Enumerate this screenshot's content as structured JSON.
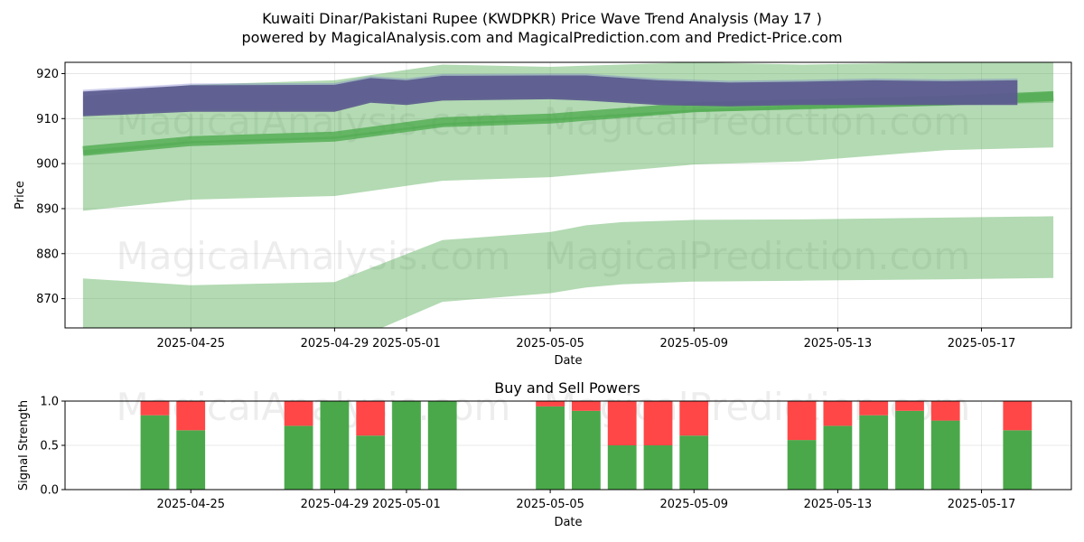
{
  "title_line1": "Kuwaiti Dinar/Pakistani Rupee (KWDPKR) Price Wave Trend Analysis (May 17 )",
  "title_line2": "powered by MagicalAnalysis.com and MagicalPrediction.com and Predict-Price.com",
  "watermarks": [
    "MagicalAnalysis.com",
    "MagicalPrediction.com"
  ],
  "chart_data": [
    {
      "type": "area",
      "xlabel": "Date",
      "ylabel": "Price",
      "ylim": [
        863.5,
        922.5
      ],
      "xlim": [
        "2025-04-21T12:00",
        "2025-05-19T12:00"
      ],
      "yticks": [
        870,
        880,
        890,
        900,
        910,
        920
      ],
      "xticks": [
        "2025-04-25",
        "2025-04-29",
        "2025-05-01",
        "2025-05-05",
        "2025-05-09",
        "2025-05-13",
        "2025-05-17"
      ],
      "grid": true,
      "colors": {
        "band": "#4aa84a",
        "trend": "#4aa84a",
        "wave": "#5b5a8e"
      },
      "outer_band": {
        "x": [
          "2025-04-22",
          "2025-04-25",
          "2025-04-29",
          "2025-05-02",
          "2025-05-05",
          "2025-05-06",
          "2025-05-07",
          "2025-05-09",
          "2025-05-12",
          "2025-05-16",
          "2025-05-19"
        ],
        "upper": [
          874.5,
          873.0,
          873.7,
          883.0,
          884.8,
          886.3,
          887.0,
          887.5,
          887.6,
          888.0,
          888.3
        ],
        "lower": [
          862.5,
          858.0,
          859.0,
          869.3,
          871.2,
          872.5,
          873.2,
          873.8,
          874.0,
          874.3,
          874.6
        ]
      },
      "mid_band": {
        "x": [
          "2025-04-22",
          "2025-04-25",
          "2025-04-29",
          "2025-05-02",
          "2025-05-05",
          "2025-05-09",
          "2025-05-12",
          "2025-05-16",
          "2025-05-19"
        ],
        "upper": [
          903.0,
          905.0,
          906.0,
          909.0,
          910.0,
          912.0,
          913.0,
          914.5,
          916.0
        ],
        "lower": [
          889.5,
          892.0,
          892.8,
          896.2,
          897.0,
          899.8,
          900.5,
          903.0,
          903.6
        ]
      },
      "upper_band": {
        "x": [
          "2025-04-22",
          "2025-04-25",
          "2025-04-29",
          "2025-05-02",
          "2025-05-05",
          "2025-05-09",
          "2025-05-12",
          "2025-05-16",
          "2025-05-19"
        ],
        "upper": [
          915.0,
          917.5,
          918.5,
          922.0,
          921.5,
          922.5,
          922.0,
          922.5,
          923.0
        ],
        "lower": [
          902.0,
          904.5,
          905.5,
          908.5,
          909.5,
          911.5,
          912.0,
          913.0,
          913.5
        ]
      },
      "trend_line": {
        "x": [
          "2025-04-22",
          "2025-04-25",
          "2025-04-29",
          "2025-05-02",
          "2025-05-05",
          "2025-05-09",
          "2025-05-12",
          "2025-05-16",
          "2025-05-19"
        ],
        "values": [
          902.8,
          905.0,
          906.0,
          909.2,
          910.0,
          912.5,
          913.2,
          914.0,
          915.0
        ]
      },
      "wave": {
        "x": [
          "2025-04-22",
          "2025-04-25",
          "2025-04-29",
          "2025-04-30",
          "2025-05-01",
          "2025-05-02",
          "2025-05-05",
          "2025-05-06",
          "2025-05-08",
          "2025-05-10",
          "2025-05-12",
          "2025-05-14",
          "2025-05-16",
          "2025-05-18"
        ],
        "upper": [
          916.0,
          917.4,
          917.5,
          919.0,
          918.5,
          919.5,
          919.6,
          919.6,
          918.5,
          918.0,
          918.2,
          918.5,
          918.3,
          918.5
        ],
        "lower": [
          910.5,
          911.5,
          911.5,
          913.5,
          913.0,
          914.0,
          914.3,
          914.0,
          913.0,
          912.7,
          913.0,
          913.0,
          913.0,
          913.0
        ]
      }
    },
    {
      "type": "bar",
      "title": "Buy and Sell Powers",
      "xlabel": "Date",
      "ylabel": "Signal Strength",
      "ylim": [
        0,
        1.0
      ],
      "yticks": [
        0.0,
        0.5,
        1.0
      ],
      "xticks": [
        "2025-04-25",
        "2025-04-29",
        "2025-05-01",
        "2025-05-05",
        "2025-05-09",
        "2025-05-13",
        "2025-05-17"
      ],
      "grid": true,
      "colors": {
        "buy": "#4aa84a",
        "sell": "#ff4747"
      },
      "categories": [
        "2025-04-24",
        "2025-04-25",
        "2025-04-28",
        "2025-04-29",
        "2025-04-30",
        "2025-05-01",
        "2025-05-02",
        "2025-05-05",
        "2025-05-06",
        "2025-05-07",
        "2025-05-08",
        "2025-05-09",
        "2025-05-12",
        "2025-05-13",
        "2025-05-14",
        "2025-05-15",
        "2025-05-16",
        "2025-05-18"
      ],
      "series": [
        {
          "name": "buy",
          "values": [
            0.84,
            0.67,
            0.72,
            1.0,
            0.61,
            1.0,
            1.0,
            0.94,
            0.89,
            0.5,
            0.5,
            0.61,
            0.56,
            0.72,
            0.84,
            0.89,
            0.78,
            0.67
          ]
        },
        {
          "name": "sell",
          "values": [
            0.16,
            0.33,
            0.28,
            0.0,
            0.39,
            0.0,
            0.0,
            0.06,
            0.11,
            0.5,
            0.5,
            0.39,
            0.44,
            0.28,
            0.16,
            0.11,
            0.22,
            0.33
          ]
        }
      ]
    }
  ]
}
